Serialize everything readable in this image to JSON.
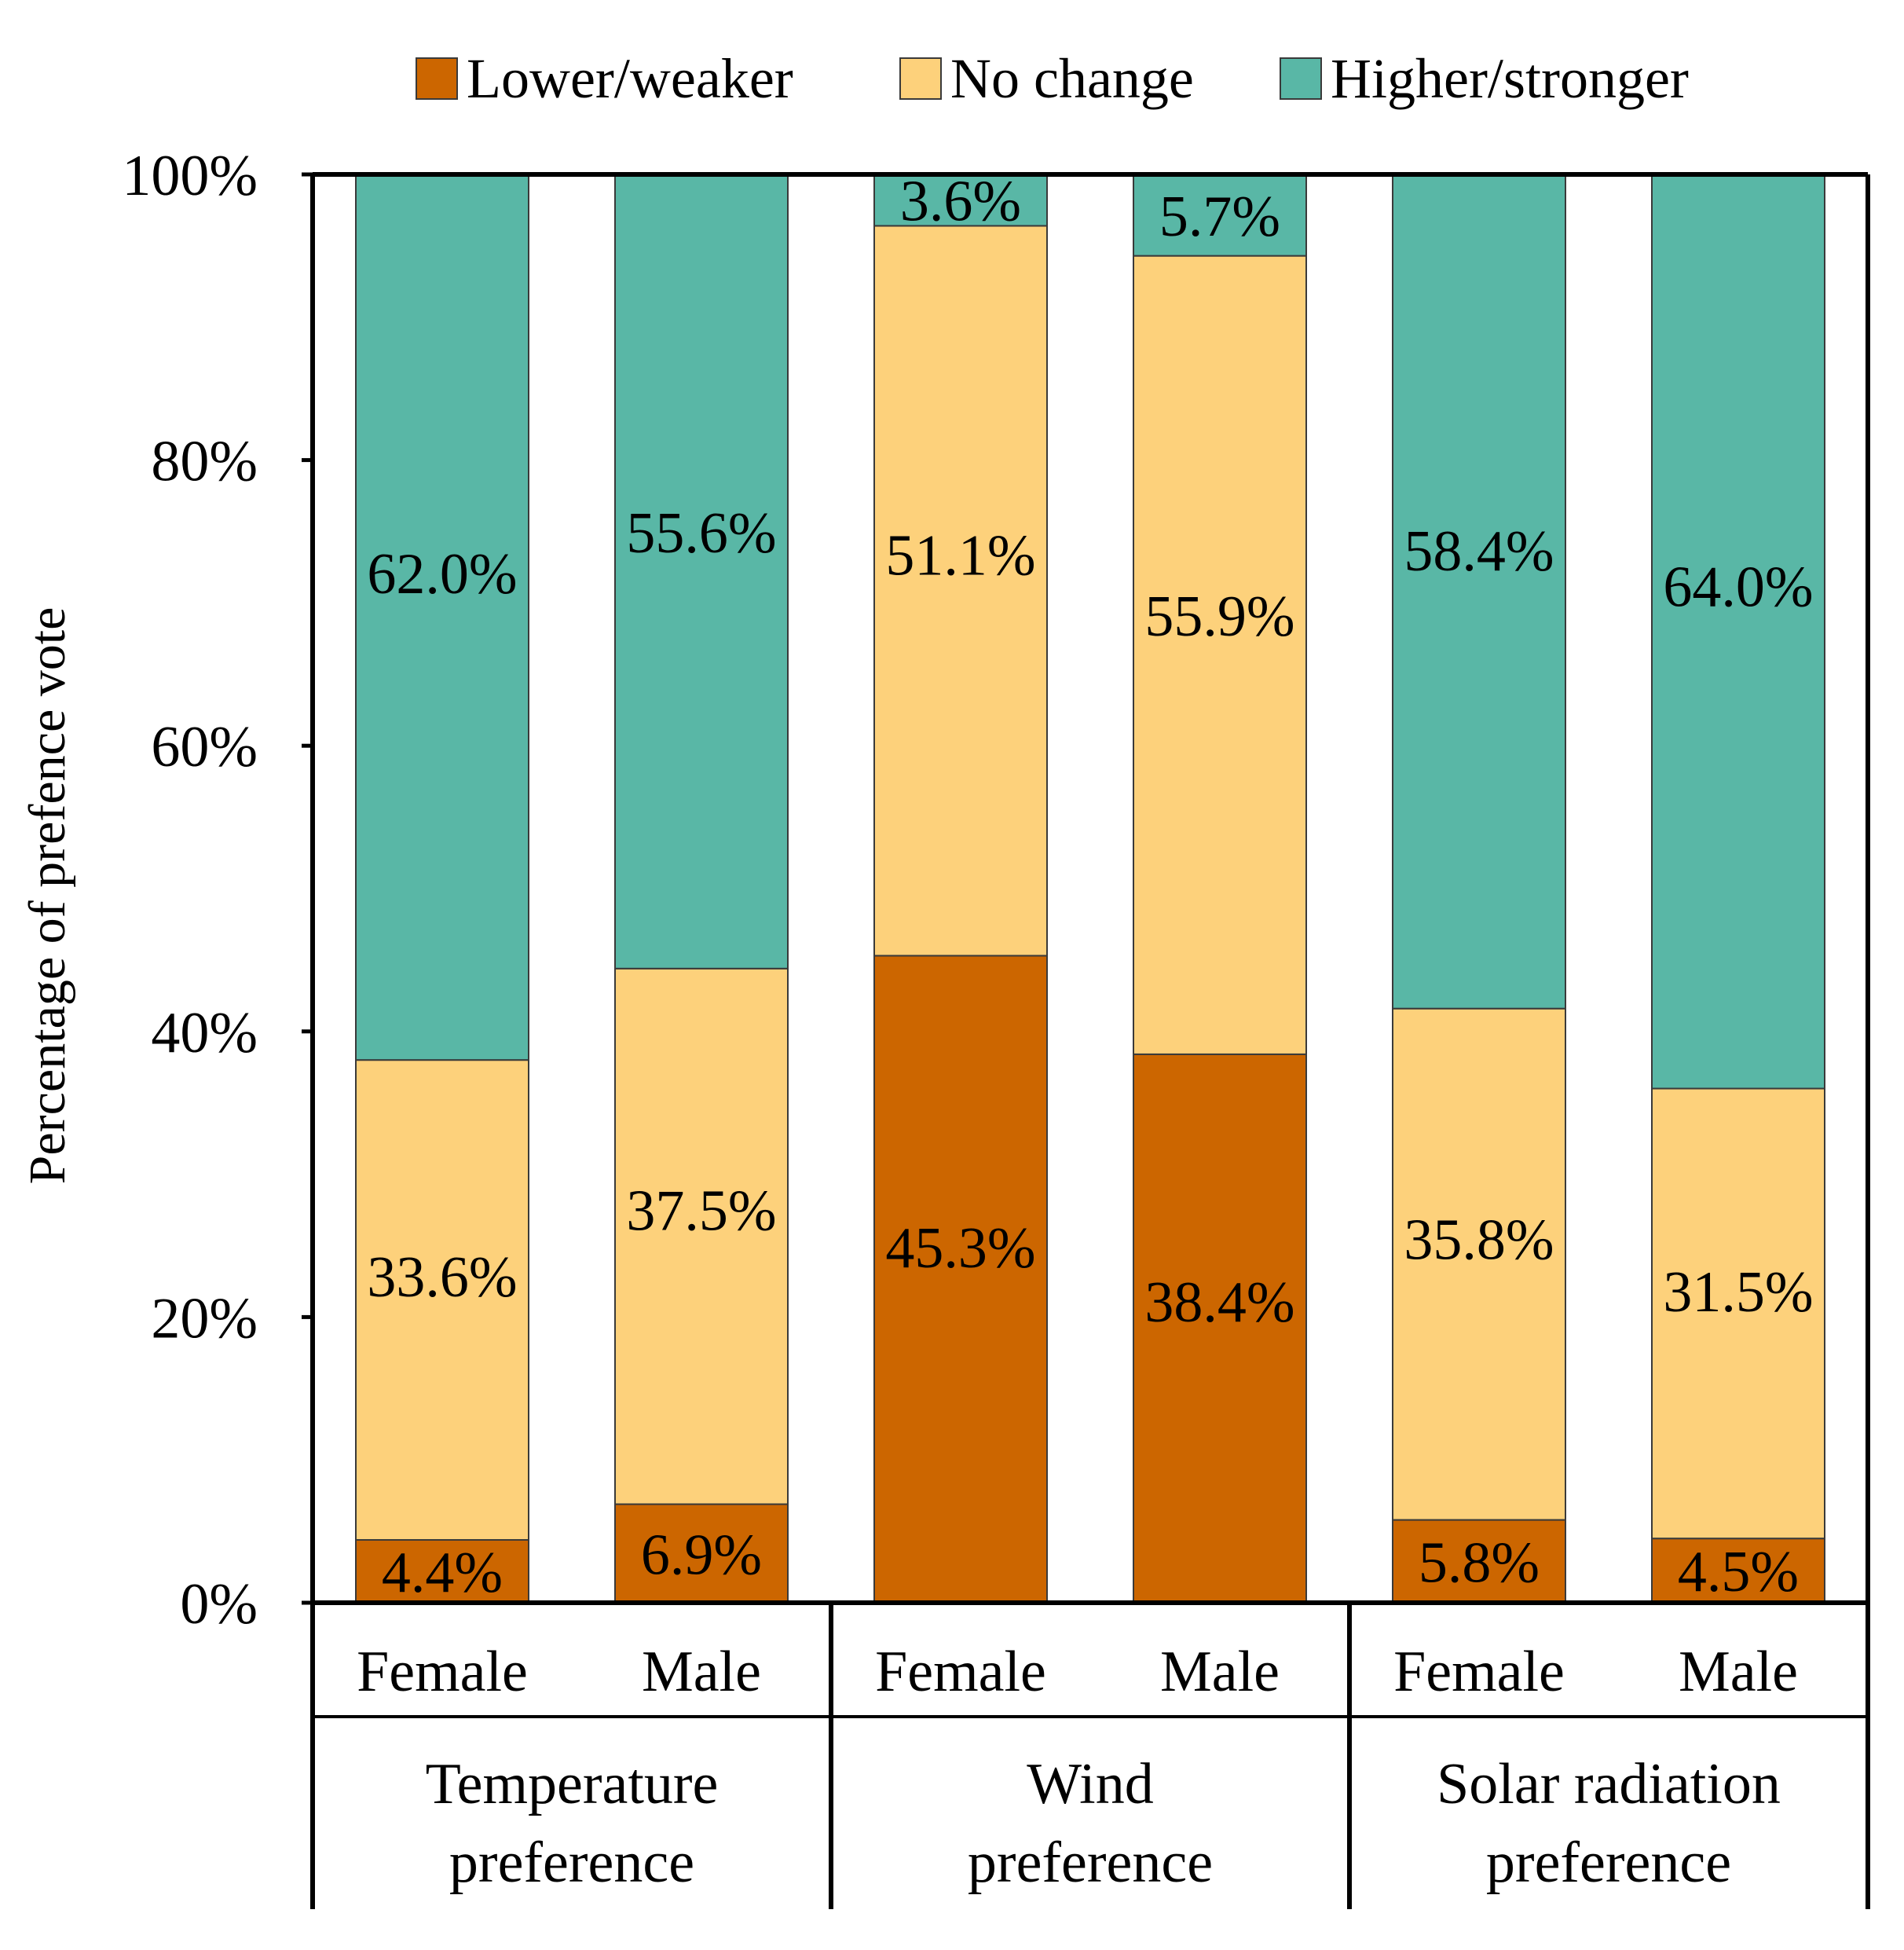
{
  "chart_data": {
    "type": "bar",
    "stacked": true,
    "percent_stacked": true,
    "title": "",
    "ylabel": "Percentage of prefence vote",
    "xlabel": "",
    "ylim": [
      0,
      100
    ],
    "y_ticks": [
      "0%",
      "20%",
      "40%",
      "60%",
      "80%",
      "100%"
    ],
    "y_tick_values": [
      0,
      20,
      40,
      60,
      80,
      100
    ],
    "categories": [
      "Female",
      "Male",
      "Female",
      "Male",
      "Female",
      "Male"
    ],
    "groups": [
      {
        "label_lines": [
          "Temperature",
          "preference"
        ],
        "categories": [
          0,
          1
        ]
      },
      {
        "label_lines": [
          "Wind",
          "preference"
        ],
        "categories": [
          2,
          3
        ]
      },
      {
        "label_lines": [
          "Solar radiation",
          "preference"
        ],
        "categories": [
          4,
          5
        ]
      }
    ],
    "series": [
      {
        "name": "Lower/weaker",
        "color": "#cc6600",
        "values": [
          4.4,
          6.9,
          45.3,
          38.4,
          5.8,
          4.5
        ],
        "labels": [
          "4.4%",
          "6.9%",
          "45.3%",
          "38.4%",
          "5.8%",
          "4.5%"
        ]
      },
      {
        "name": "No change",
        "color": "#fdd17b",
        "values": [
          33.6,
          37.5,
          51.1,
          55.9,
          35.8,
          31.5
        ],
        "labels": [
          "33.6%",
          "37.5%",
          "51.1%",
          "55.9%",
          "35.8%",
          "31.5%"
        ]
      },
      {
        "name": "Higher/stronger",
        "color": "#59b7a6",
        "values": [
          62.0,
          55.6,
          3.6,
          5.7,
          58.4,
          64.0
        ],
        "labels": [
          "62.0%",
          "55.6%",
          "3.6%",
          "5.7%",
          "58.4%",
          "64.0%"
        ]
      }
    ],
    "legend_position": "top",
    "grid": false
  }
}
